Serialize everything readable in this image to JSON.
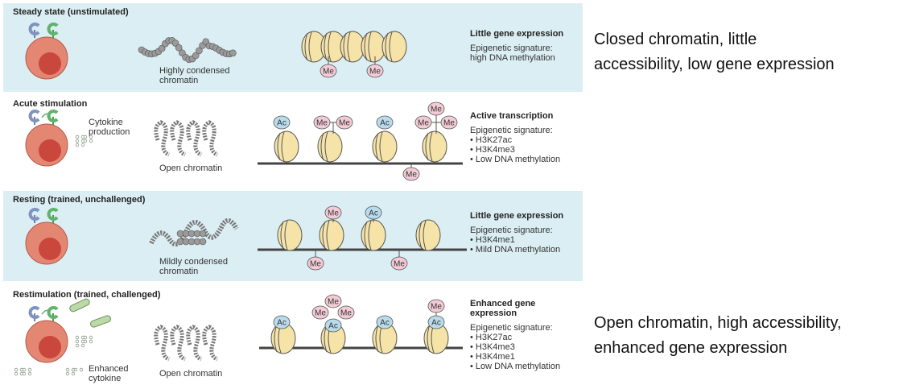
{
  "panels": [
    {
      "title": "Steady state (unstimulated)",
      "cell_label": [],
      "chromatin_label": [
        "Highly condensed",
        "chromatin"
      ],
      "signature_title": [
        "Little gene expression"
      ],
      "signature_lines": [
        "Epigenetic signature:",
        "high DNA methylation"
      ]
    },
    {
      "title": "Acute stimulation",
      "cell_label": [
        "Cytokine",
        "production"
      ],
      "chromatin_label": [
        "Open chromatin"
      ],
      "signature_title": [
        "Active transcription"
      ],
      "signature_lines": [
        "Epigenetic signature:",
        "• H3K27ac",
        "• H3K4me3",
        "• Low DNA methylation"
      ]
    },
    {
      "title": "Resting (trained, unchallenged)",
      "cell_label": [],
      "chromatin_label": [
        "Mildly condensed",
        "chromatin"
      ],
      "signature_title": [
        "Little gene expression"
      ],
      "signature_lines": [
        "Epigenetic signature:",
        "• H3K4me1",
        "• Mild DNA methylation"
      ]
    },
    {
      "title": "Restimulation (trained, challenged)",
      "cell_label": [
        "Enhanced",
        "cytokine"
      ],
      "chromatin_label": [
        "Open chromatin"
      ],
      "signature_title": [
        "Enhanced gene",
        "expression"
      ],
      "signature_lines": [
        "Epigenetic signature:",
        "• H3K27ac",
        "• H3K4me3",
        "• H3K4me1",
        "• Low DNA methylation"
      ]
    }
  ],
  "tags": {
    "me": "Me",
    "ac": "Ac"
  },
  "captions": {
    "top": [
      "Closed chromatin, little",
      "accessibility, low gene expression"
    ],
    "bottom": [
      "Open chromatin, high accessibility,",
      "enhanced gene expression"
    ]
  },
  "colors": {
    "panel_bg": "#dbeef3",
    "cell": "#e38672",
    "nucleus": "#c9473d",
    "nucleosome": "#f5e3a8",
    "me_tag": "#f3cbd6",
    "ac_tag": "#b9dced",
    "dna": "#444444"
  }
}
